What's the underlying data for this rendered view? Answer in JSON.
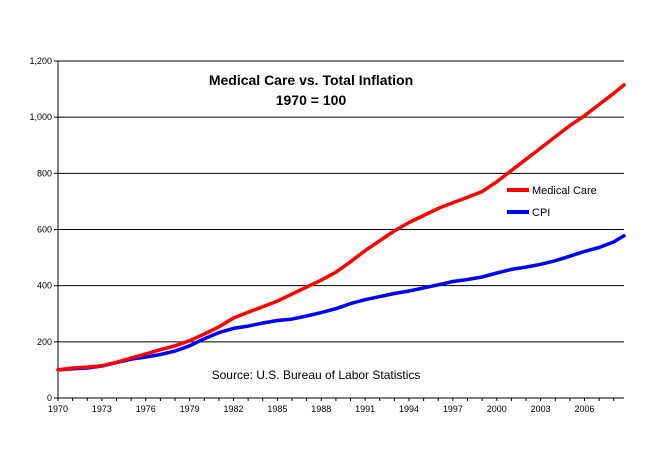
{
  "chart_data": {
    "type": "line",
    "title": "Medical Care vs. Total Inflation",
    "subtitle": "1970 = 100",
    "annotation": "Source: U.S. Bureau of Labor Statistics",
    "xlabel": "",
    "ylabel": "",
    "xlim": [
      1970,
      2008.7
    ],
    "ylim": [
      0,
      1200
    ],
    "y_ticks": [
      0,
      200,
      400,
      600,
      800,
      1000,
      1200
    ],
    "y_tick_labels": [
      "0",
      "200",
      "400",
      "600",
      "800",
      "1,000",
      "1,200"
    ],
    "x_ticks": [
      1970,
      1973,
      1976,
      1979,
      1982,
      1985,
      1988,
      1991,
      1994,
      1997,
      2000,
      2003,
      2006
    ],
    "x_tick_labels": [
      "1970",
      "1973",
      "1976",
      "1979",
      "1982",
      "1985",
      "1988",
      "1991",
      "1994",
      "1997",
      "2000",
      "2003",
      "2006"
    ],
    "grid": "horizontal",
    "legend_position": "right",
    "series": [
      {
        "name": "Medical Care",
        "color": "#ff0000",
        "x": [
          1970,
          1971,
          1972,
          1973,
          1974,
          1975,
          1976,
          1977,
          1978,
          1979,
          1980,
          1981,
          1982,
          1983,
          1984,
          1985,
          1986,
          1987,
          1988,
          1989,
          1990,
          1991,
          1992,
          1993,
          1994,
          1995,
          1996,
          1997,
          1998,
          1999,
          2000,
          2001,
          2002,
          2003,
          2004,
          2005,
          2006,
          2007,
          2008,
          2008.7
        ],
        "values": [
          100,
          107,
          110,
          115,
          127,
          142,
          157,
          172,
          186,
          204,
          228,
          253,
          285,
          305,
          325,
          345,
          370,
          395,
          420,
          448,
          485,
          525,
          560,
          595,
          625,
          650,
          675,
          695,
          715,
          735,
          770,
          810,
          850,
          890,
          930,
          970,
          1005,
          1045,
          1085,
          1115
        ]
      },
      {
        "name": "CPI",
        "color": "#0000ff",
        "x": [
          1970,
          1971,
          1972,
          1973,
          1974,
          1975,
          1976,
          1977,
          1978,
          1979,
          1980,
          1981,
          1982,
          1983,
          1984,
          1985,
          1986,
          1987,
          1988,
          1989,
          1990,
          1991,
          1992,
          1993,
          1994,
          1995,
          1996,
          1997,
          1998,
          1999,
          2000,
          2001,
          2002,
          2003,
          2004,
          2005,
          2006,
          2007,
          2008,
          2008.7
        ],
        "values": [
          100,
          104,
          107,
          114,
          126,
          138,
          146,
          155,
          167,
          186,
          211,
          233,
          248,
          256,
          267,
          276,
          281,
          292,
          304,
          318,
          336,
          350,
          361,
          372,
          381,
          392,
          403,
          415,
          422,
          431,
          445,
          458,
          466,
          476,
          489,
          505,
          522,
          536,
          556,
          578
        ]
      }
    ]
  }
}
